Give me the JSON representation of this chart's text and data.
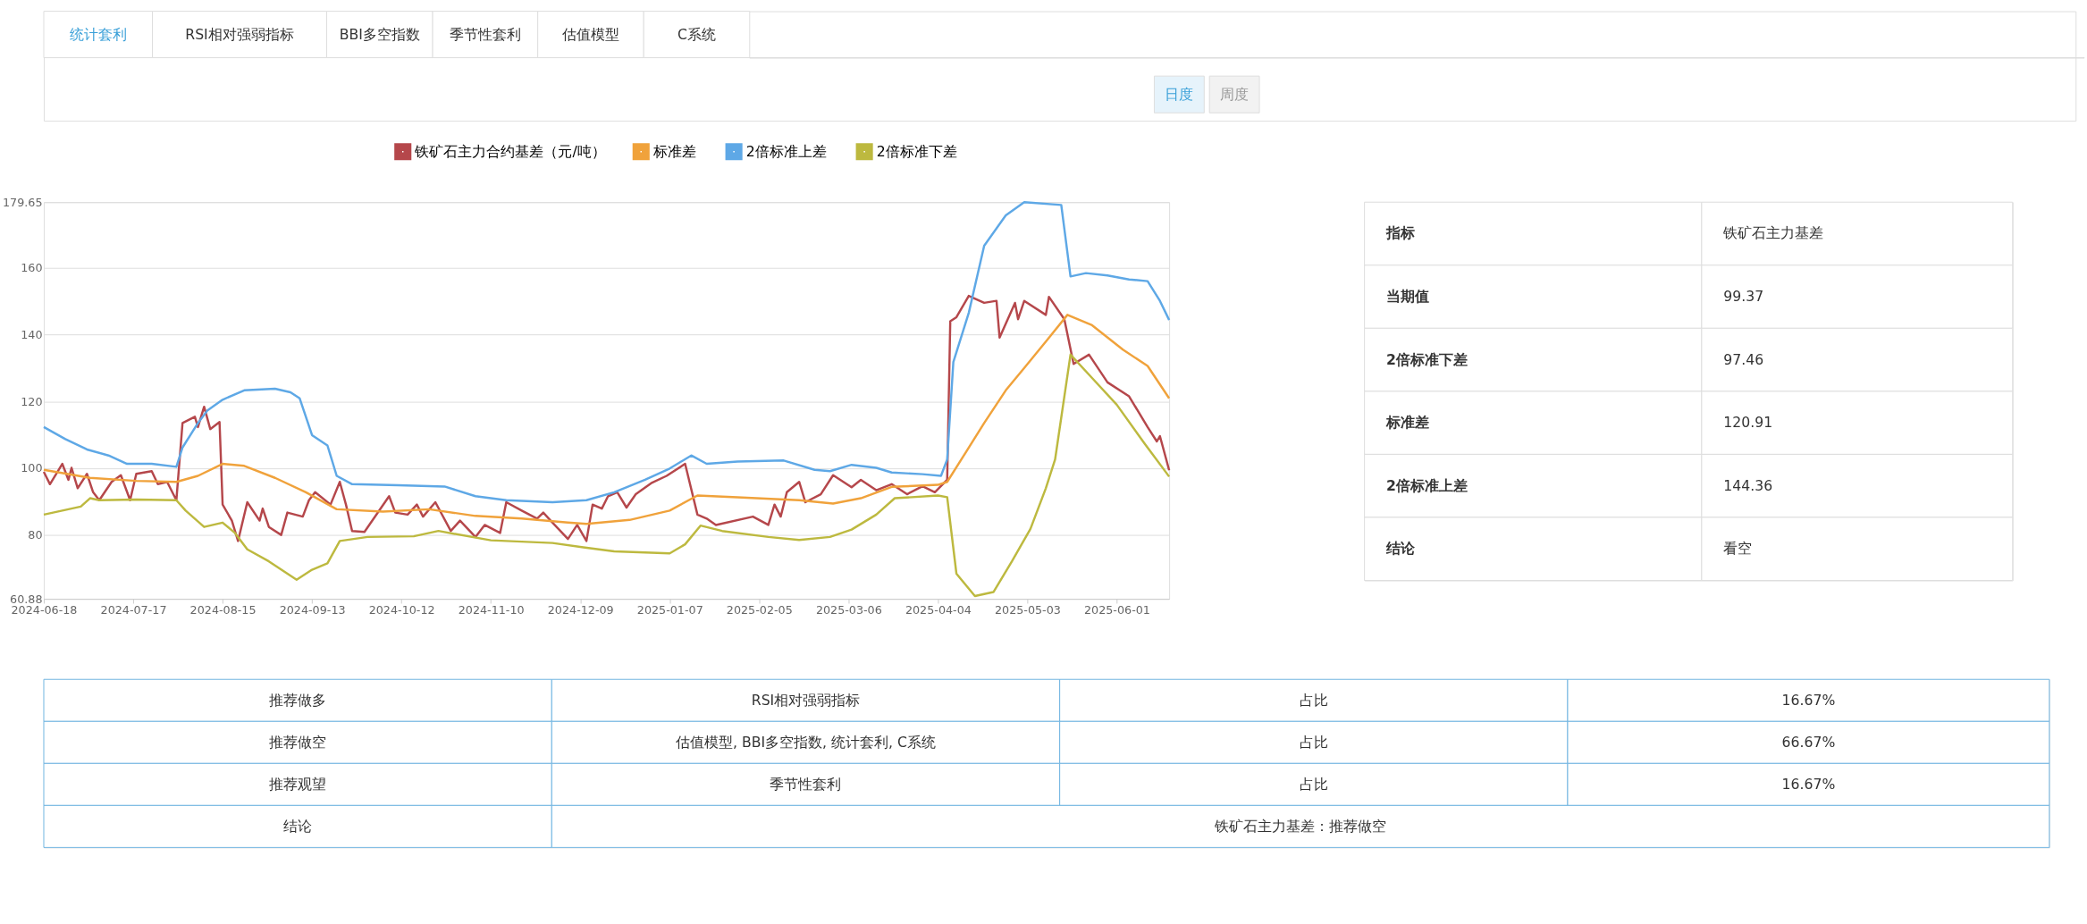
{
  "chart_data": [
    {
      "type": "other",
      "annotations": [
        "统计套利",
        "RSI相对强弱指标",
        "BBI多空指数",
        "季节性套利",
        "估值模型",
        "C系统"
      ]
    },
    {
      "type": "other",
      "annotations": [
        "日度",
        "周度"
      ]
    },
    {
      "type": "line",
      "legend": "top",
      "grid": "y",
      "xlim": [
        "2024-06-18",
        "2025-06-18"
      ],
      "xticks": [
        "2024-06-18",
        "2024-07-17",
        "2024-08-15",
        "2024-09-13",
        "2024-10-12",
        "2024-11-10",
        "2024-12-09",
        "2025-01-07",
        "2025-02-05",
        "2025-03-06",
        "2025-04-04",
        "2025-05-03",
        "2025-06-01"
      ],
      "ylim": [
        60.88,
        179.65
      ],
      "yticks": [
        60.88,
        80,
        100,
        120,
        140,
        160,
        179.65
      ],
      "series": [
        {
          "name": "铁矿石主力合约基差（元/吨）",
          "color": "#b5474b",
          "x": [
            "2024-06-18",
            "2024-06-20",
            "2024-06-24",
            "2024-06-26",
            "2024-06-27",
            "2024-06-29",
            "2024-07-02",
            "2024-07-04",
            "2024-07-06",
            "2024-07-10",
            "2024-07-13",
            "2024-07-16",
            "2024-07-18",
            "2024-07-23",
            "2024-07-25",
            "2024-07-28",
            "2024-07-31",
            "2024-08-02",
            "2024-08-06",
            "2024-08-07",
            "2024-08-09",
            "2024-08-11",
            "2024-08-14",
            "2024-08-15",
            "2024-08-18",
            "2024-08-20",
            "2024-08-23",
            "2024-08-27",
            "2024-08-28",
            "2024-08-30",
            "2024-09-03",
            "2024-09-05",
            "2024-09-10",
            "2024-09-12",
            "2024-09-14",
            "2024-09-19",
            "2024-09-22",
            "2024-09-24",
            "2024-09-26",
            "2024-09-30",
            "2024-10-08",
            "2024-10-10",
            "2024-10-14",
            "2024-10-17",
            "2024-10-19",
            "2024-10-23",
            "2024-10-28",
            "2024-10-31",
            "2024-11-05",
            "2024-11-08",
            "2024-11-13",
            "2024-11-15",
            "2024-11-20",
            "2024-11-25",
            "2024-11-27",
            "2024-11-30",
            "2024-12-05",
            "2024-12-08",
            "2024-12-11",
            "2024-12-13",
            "2024-12-16",
            "2024-12-18",
            "2024-12-21",
            "2024-12-24",
            "2024-12-27",
            "2025-01-01",
            "2025-01-06",
            "2025-01-12",
            "2025-01-16",
            "2025-01-19",
            "2025-01-22",
            "2025-02-03",
            "2025-02-08",
            "2025-02-10",
            "2025-02-12",
            "2025-02-14",
            "2025-02-18",
            "2025-02-20",
            "2025-02-25",
            "2025-03-01",
            "2025-03-07",
            "2025-03-10",
            "2025-03-15",
            "2025-03-20",
            "2025-03-25",
            "2025-03-30",
            "2025-04-03",
            "2025-04-07",
            "2025-04-08",
            "2025-04-10",
            "2025-04-14",
            "2025-04-19",
            "2025-04-23",
            "2025-04-24",
            "2025-04-29",
            "2025-04-30",
            "2025-05-02",
            "2025-05-09",
            "2025-05-10",
            "2025-05-15",
            "2025-05-18",
            "2025-05-23",
            "2025-05-29",
            "2025-06-05",
            "2025-06-11",
            "2025-06-14",
            "2025-06-15",
            "2025-06-18"
          ],
          "values": [
            98.9,
            95.2,
            101.3,
            96.5,
            100.1,
            94,
            98.3,
            92.8,
            90.4,
            95.9,
            97.9,
            90.4,
            98.3,
            99.1,
            95.2,
            95.9,
            90.4,
            113.5,
            115.4,
            112.3,
            118.4,
            111.7,
            113.8,
            89.1,
            84.3,
            78.2,
            89.8,
            84.3,
            87.9,
            82.4,
            80,
            86.7,
            85.5,
            90.4,
            92.8,
            89.1,
            95.9,
            89.1,
            81.2,
            80.9,
            91.6,
            86.7,
            86.1,
            89.1,
            85.5,
            89.8,
            81.2,
            84.3,
            79.4,
            83,
            80.6,
            89.8,
            87.3,
            84.9,
            86.7,
            83.7,
            78.8,
            83,
            78.2,
            89.1,
            87.9,
            91.6,
            92.8,
            88.2,
            92.2,
            95.5,
            97.7,
            101.3,
            86.1,
            84.9,
            83,
            85.5,
            83,
            89.1,
            85.5,
            92.8,
            95.9,
            89.8,
            92.2,
            97.9,
            94.3,
            96.5,
            93.4,
            95.2,
            92.2,
            94.6,
            92.8,
            96.5,
            144,
            145.2,
            151.6,
            149.5,
            150.1,
            139.1,
            149.5,
            144.6,
            150.1,
            145.9,
            151.3,
            144.6,
            131.2,
            134,
            125.7,
            121.5,
            112.3,
            108,
            109.6,
            99.37
          ]
        },
        {
          "name": "标准差",
          "color": "#f0a23b",
          "x": [
            "2024-06-18",
            "2024-07-03",
            "2024-07-18",
            "2024-07-31",
            "2024-08-07",
            "2024-08-15",
            "2024-08-22",
            "2024-09-01",
            "2024-09-11",
            "2024-09-21",
            "2024-10-06",
            "2024-10-21",
            "2024-11-05",
            "2024-11-20",
            "2024-12-05",
            "2024-12-11",
            "2024-12-25",
            "2025-01-07",
            "2025-01-16",
            "2025-01-29",
            "2025-02-18",
            "2025-03-01",
            "2025-03-10",
            "2025-03-20",
            "2025-04-04",
            "2025-04-07",
            "2025-04-12",
            "2025-04-19",
            "2025-04-26",
            "2025-05-02",
            "2025-05-09",
            "2025-05-16",
            "2025-05-24",
            "2025-06-03",
            "2025-06-11",
            "2025-06-18"
          ],
          "values": [
            99.5,
            97.1,
            96.2,
            95.9,
            97.7,
            101.3,
            100.7,
            97.1,
            92.8,
            87.7,
            87,
            87.7,
            85.7,
            84.9,
            83.7,
            83.3,
            84.5,
            87.3,
            91.8,
            91.3,
            90.4,
            89.4,
            91,
            94.4,
            95,
            95.9,
            103.2,
            113.5,
            123.3,
            130,
            137.9,
            145.9,
            142.8,
            135.5,
            130.6,
            120.91
          ]
        },
        {
          "name": "2倍标准上差",
          "color": "#5ea8e6",
          "x": [
            "2024-06-18",
            "2024-06-25",
            "2024-07-02",
            "2024-07-09",
            "2024-07-15",
            "2024-07-23",
            "2024-07-31",
            "2024-08-02",
            "2024-08-07",
            "2024-08-10",
            "2024-08-15",
            "2024-08-22",
            "2024-09-01",
            "2024-09-06",
            "2024-09-09",
            "2024-09-13",
            "2024-09-18",
            "2024-09-21",
            "2024-09-26",
            "2024-10-11",
            "2024-10-26",
            "2024-11-05",
            "2024-11-15",
            "2024-11-30",
            "2024-12-11",
            "2024-12-20",
            "2024-12-30",
            "2025-01-07",
            "2025-01-14",
            "2025-01-19",
            "2025-01-29",
            "2025-02-13",
            "2025-02-23",
            "2025-02-28",
            "2025-03-07",
            "2025-03-15",
            "2025-03-20",
            "2025-03-30",
            "2025-04-05",
            "2025-04-07",
            "2025-04-09",
            "2025-04-14",
            "2025-04-19",
            "2025-04-26",
            "2025-05-02",
            "2025-05-14",
            "2025-05-17",
            "2025-05-22",
            "2025-05-29",
            "2025-06-05",
            "2025-06-11",
            "2025-06-15",
            "2025-06-18"
          ],
          "values": [
            112.3,
            108.7,
            105.6,
            103.8,
            101.3,
            101.3,
            100.4,
            106.2,
            113.5,
            117.2,
            120.5,
            123.3,
            123.8,
            122.7,
            120.9,
            109.9,
            106.8,
            97.7,
            95.2,
            94.9,
            94.5,
            91.6,
            90.4,
            89.8,
            90.4,
            92.8,
            96.5,
            99.9,
            103.8,
            101.3,
            102,
            102.3,
            99.5,
            99.1,
            101,
            100.1,
            98.7,
            98.2,
            97.7,
            102.6,
            131.8,
            146.5,
            166.6,
            175.7,
            179.65,
            178.8,
            157.4,
            158.4,
            157.7,
            156.5,
            156,
            150.1,
            144.36
          ]
        },
        {
          "name": "2倍标准下差",
          "color": "#bdb93f",
          "x": [
            "2024-06-18",
            "2024-06-30",
            "2024-07-03",
            "2024-07-06",
            "2024-07-18",
            "2024-07-31",
            "2024-08-03",
            "2024-08-09",
            "2024-08-15",
            "2024-08-19",
            "2024-08-23",
            "2024-08-30",
            "2024-09-08",
            "2024-09-13",
            "2024-09-18",
            "2024-09-22",
            "2024-10-01",
            "2024-10-16",
            "2024-10-24",
            "2024-11-10",
            "2024-11-30",
            "2024-12-10",
            "2024-12-20",
            "2025-01-07",
            "2025-01-12",
            "2025-01-17",
            "2025-01-24",
            "2025-02-08",
            "2025-02-18",
            "2025-02-28",
            "2025-03-07",
            "2025-03-15",
            "2025-03-21",
            "2025-04-04",
            "2025-04-07",
            "2025-04-10",
            "2025-04-16",
            "2025-04-22",
            "2025-04-28",
            "2025-05-04",
            "2025-05-09",
            "2025-05-12",
            "2025-05-17",
            "2025-05-24",
            "2025-06-01",
            "2025-06-10",
            "2025-06-18"
          ],
          "values": [
            86.1,
            88.5,
            91,
            90.4,
            90.6,
            90.4,
            87.3,
            82.4,
            83.7,
            80.6,
            75.7,
            72.1,
            66.6,
            69.6,
            71.5,
            78.2,
            79.4,
            79.6,
            81.2,
            78.4,
            77.6,
            76.3,
            75.1,
            74.5,
            77.2,
            82.8,
            81.2,
            79.4,
            78.5,
            79.4,
            81.6,
            86.1,
            91,
            91.8,
            91.3,
            68.4,
            61.7,
            62.9,
            72.1,
            81.8,
            94,
            102.6,
            134,
            127,
            119,
            107.4,
            97.46
          ]
        }
      ]
    },
    {
      "type": "other",
      "annotations": [
        "指标",
        "铁矿石主力基差",
        "当期值",
        "99.37",
        "2倍标准下差",
        "97.46",
        "标准差",
        "120.91",
        "2倍标准上差",
        "144.36",
        "结论",
        "看空"
      ]
    },
    {
      "type": "other",
      "annotations": [
        "推荐做多",
        "RSI相对强弱指标",
        "占比",
        "16.67%",
        "推荐做空",
        "估值模型, BBI多空指数, 统计套利, C系统",
        "占比",
        "66.67%",
        "推荐观望",
        "季节性套利",
        "占比",
        "16.67%",
        "结论",
        "铁矿石主力基差：推荐做空"
      ]
    }
  ]
}
